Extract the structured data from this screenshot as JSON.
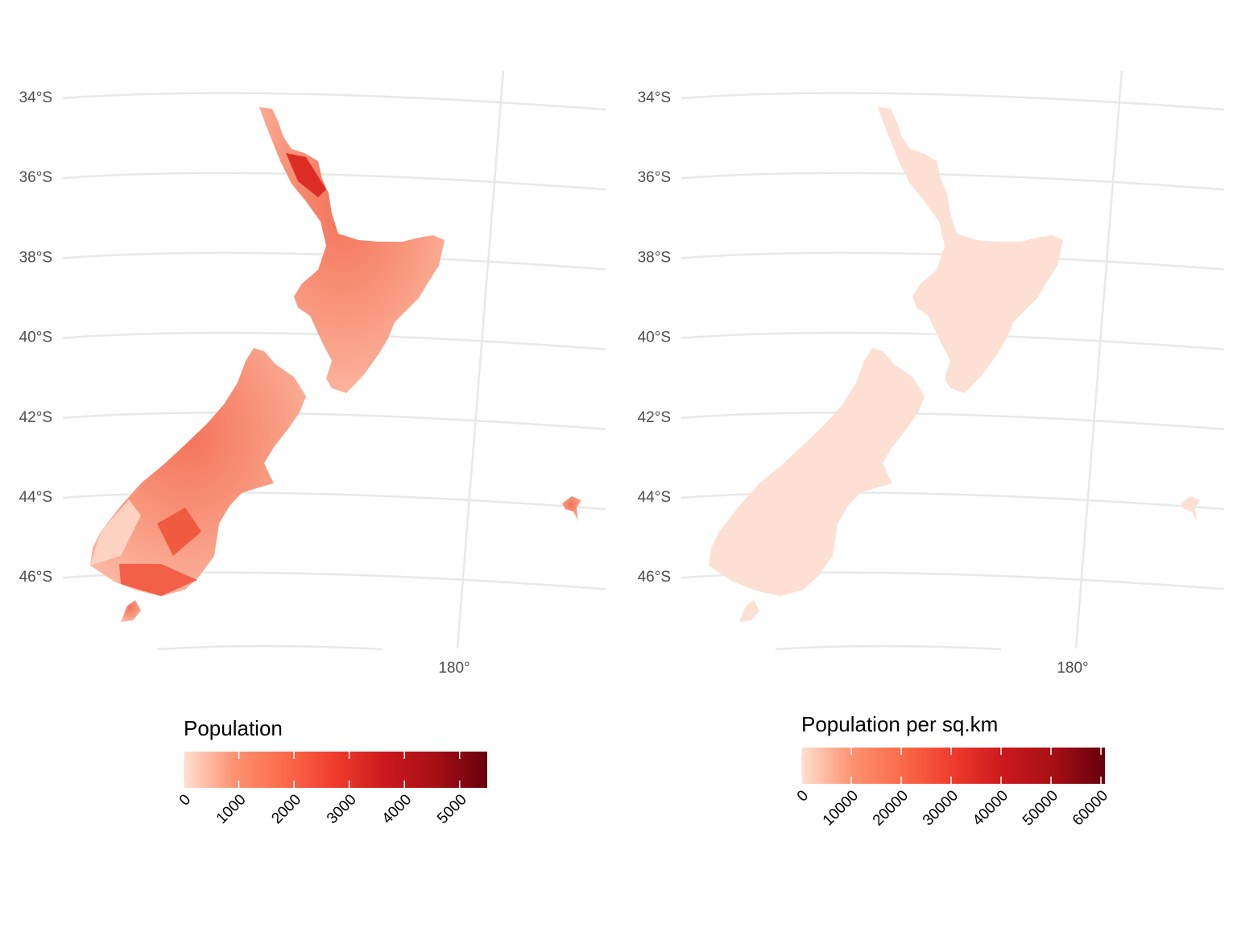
{
  "panels": [
    {
      "lat_labels": [
        "34°S",
        "36°S",
        "38°S",
        "40°S",
        "42°S",
        "44°S",
        "46°S"
      ],
      "lon_label": "180°",
      "legend": {
        "title": "Population",
        "ticks": [
          0,
          1000,
          2000,
          3000,
          4000,
          5000
        ],
        "range": [
          0,
          5500
        ],
        "colors": [
          "#fee0d2",
          "#fc9272",
          "#fb6a4a",
          "#ef3b2c",
          "#cb181d",
          "#a50f15",
          "#67000d"
        ]
      }
    },
    {
      "lat_labels": [
        "34°S",
        "36°S",
        "38°S",
        "40°S",
        "42°S",
        "44°S",
        "46°S"
      ],
      "lon_label": "180°",
      "legend": {
        "title": "Population per sq.km",
        "ticks": [
          0,
          10000,
          20000,
          30000,
          40000,
          50000,
          60000
        ],
        "range": [
          0,
          60800
        ],
        "colors": [
          "#fee0d2",
          "#fc9272",
          "#fb6a4a",
          "#ef3b2c",
          "#cb181d",
          "#a50f15",
          "#67000d"
        ]
      }
    }
  ]
}
